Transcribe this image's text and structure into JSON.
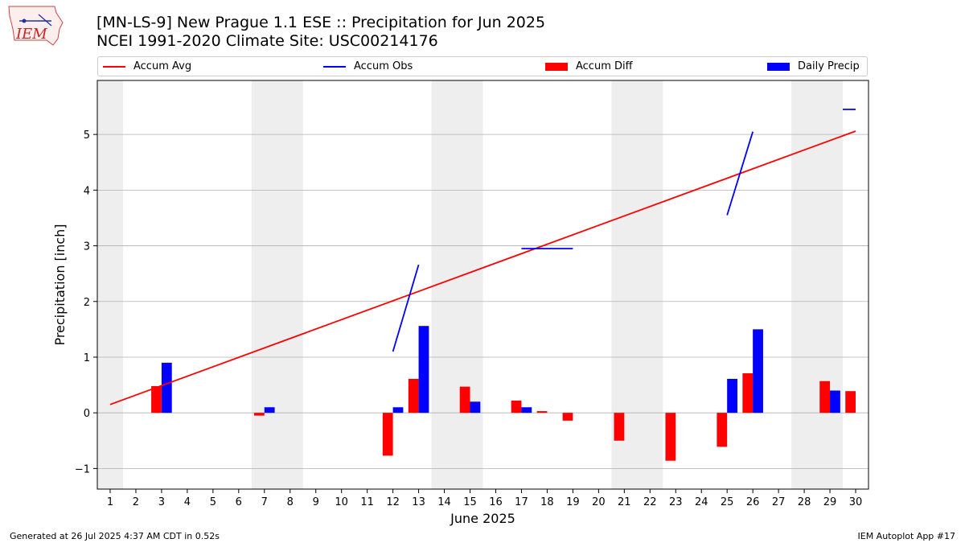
{
  "header": {
    "logo_text": "IEM",
    "title_line1": "[MN-LS-9] New Prague 1.1 ESE :: Precipitation for Jun 2025",
    "title_line2": "NCEI 1991-2020 Climate Site: USC00214176"
  },
  "footer": {
    "generated": "Generated at 26 Jul 2025 4:37 AM CDT in 0.52s",
    "app": "IEM Autoplot App #17"
  },
  "colors": {
    "avg": "#ff0000",
    "obs": "#0000ff",
    "diff": "#ff0000",
    "daily": "#0000ff",
    "weekend": "#eeeeee",
    "grid": "#b0b0b0"
  },
  "legend": [
    {
      "label": "Accum Avg",
      "kind": "line",
      "color": "#ff0000"
    },
    {
      "label": "Accum Obs",
      "kind": "line",
      "color": "#0000ff"
    },
    {
      "label": "Accum Diff",
      "kind": "patch",
      "color": "#ff0000"
    },
    {
      "label": "Daily Precip",
      "kind": "patch",
      "color": "#0000ff"
    }
  ],
  "chart_data": {
    "type": "bar",
    "xlabel": "June 2025",
    "ylabel": "Precipitation [inch]",
    "ylim": [
      -1.37,
      5.97
    ],
    "yticks": [
      -1,
      0,
      1,
      2,
      3,
      4,
      5
    ],
    "ytick_labels": [
      "−1",
      "0",
      "1",
      "2",
      "3",
      "4",
      "5"
    ],
    "grid": true,
    "days": [
      1,
      2,
      3,
      4,
      5,
      6,
      7,
      8,
      9,
      10,
      11,
      12,
      13,
      14,
      15,
      16,
      17,
      18,
      19,
      20,
      21,
      22,
      23,
      24,
      25,
      26,
      27,
      28,
      29,
      30
    ],
    "weekend_bands": [
      [
        1,
        1
      ],
      [
        7,
        8
      ],
      [
        14,
        15
      ],
      [
        21,
        22
      ],
      [
        28,
        29
      ]
    ],
    "accum_avg": {
      "x": [
        1,
        30
      ],
      "y": [
        0.15,
        5.06
      ]
    },
    "accum_obs_segments": [
      {
        "x": [
          12,
          13
        ],
        "y": [
          1.1,
          2.66
        ]
      },
      {
        "x": [
          17,
          19
        ],
        "y": [
          2.95,
          2.95
        ]
      },
      {
        "x": [
          25,
          26
        ],
        "y": [
          3.55,
          5.05
        ]
      },
      {
        "x": [
          29.5,
          30
        ],
        "y": [
          5.45,
          5.45
        ]
      }
    ],
    "series": [
      {
        "name": "Accum Diff",
        "values": [
          0,
          0,
          0.48,
          0,
          0,
          0,
          -0.05,
          0,
          0,
          0,
          0,
          -0.77,
          0.61,
          0,
          0.47,
          0,
          0.22,
          0.03,
          -0.14,
          0,
          -0.5,
          0,
          -0.86,
          0,
          -0.61,
          0.71,
          0,
          0,
          0.57,
          0.39
        ]
      },
      {
        "name": "Daily Precip",
        "values": [
          0,
          0,
          0.9,
          0,
          0,
          0,
          0.1,
          0,
          0,
          0,
          0,
          0.1,
          1.56,
          0,
          0.2,
          0,
          0.1,
          0,
          0,
          0,
          0,
          0,
          0,
          0,
          0.61,
          1.5,
          0,
          0,
          0.4,
          0
        ]
      }
    ]
  }
}
